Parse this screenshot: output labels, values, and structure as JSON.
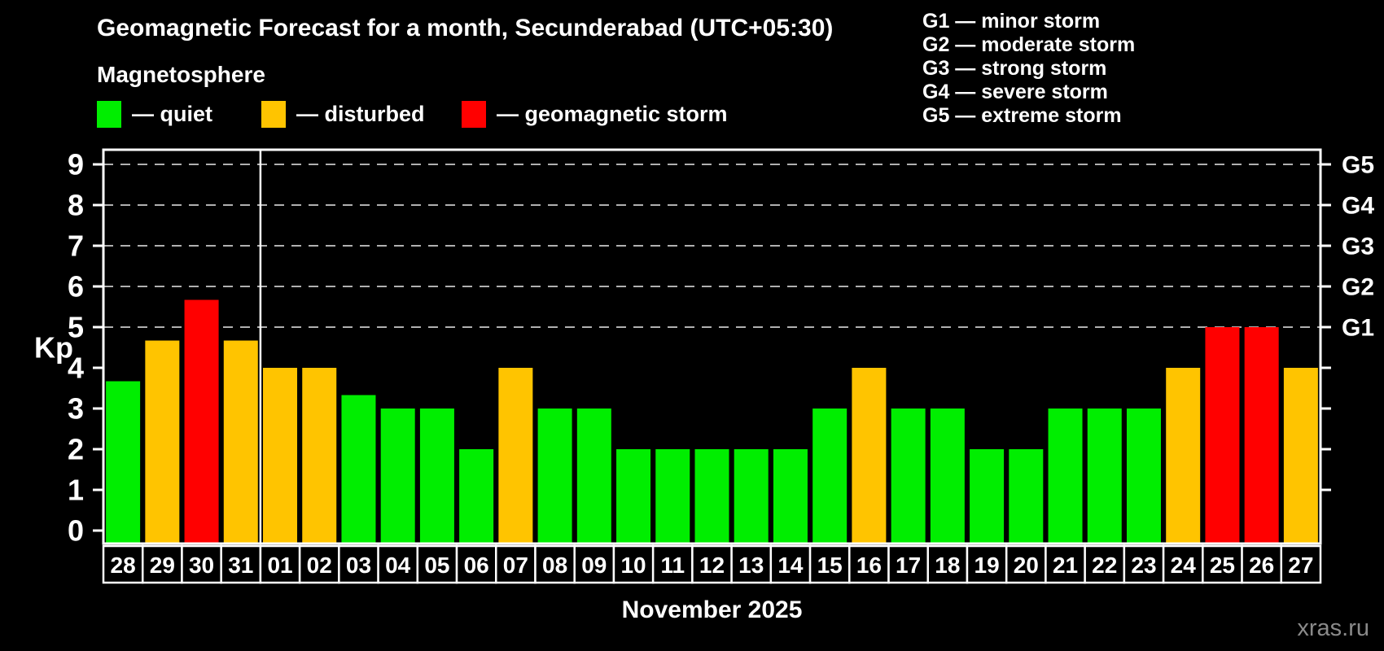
{
  "header": {
    "title": "Geomagnetic Forecast for a month, Secunderabad (UTC+05:30)",
    "subtitle": "Magnetosphere"
  },
  "legend": {
    "items": [
      {
        "label": "— quiet",
        "status": "quiet",
        "color": "#00ee00"
      },
      {
        "label": "— disturbed",
        "status": "disturbed",
        "color": "#ffc400"
      },
      {
        "label": "— geomagnetic storm",
        "status": "storm",
        "color": "#ff0000"
      }
    ]
  },
  "storm_scale": {
    "items": [
      {
        "label": "G1 — minor storm"
      },
      {
        "label": "G2 — moderate storm"
      },
      {
        "label": "G3 — strong storm"
      },
      {
        "label": "G4 — severe storm"
      },
      {
        "label": "G5 — extreme storm"
      }
    ]
  },
  "chart_data": {
    "type": "bar",
    "title": "Geomagnetic Forecast for a month, Secunderabad (UTC+05:30)",
    "ylabel": "Kp",
    "xlabel": "November 2025",
    "categories": [
      "28",
      "29",
      "30",
      "31",
      "01",
      "02",
      "03",
      "04",
      "05",
      "06",
      "07",
      "08",
      "09",
      "10",
      "11",
      "12",
      "13",
      "14",
      "15",
      "16",
      "17",
      "18",
      "19",
      "20",
      "21",
      "22",
      "23",
      "24",
      "25",
      "26",
      "27"
    ],
    "values": [
      3.67,
      4.67,
      5.67,
      4.67,
      4,
      4,
      3.33,
      3,
      3,
      2,
      4,
      3,
      3,
      2,
      2,
      2,
      2,
      2,
      3,
      4,
      3,
      3,
      2,
      2,
      3,
      3,
      3,
      4,
      5,
      5,
      4
    ],
    "statuses": [
      "quiet",
      "disturbed",
      "storm",
      "disturbed",
      "disturbed",
      "disturbed",
      "quiet",
      "quiet",
      "quiet",
      "quiet",
      "disturbed",
      "quiet",
      "quiet",
      "quiet",
      "quiet",
      "quiet",
      "quiet",
      "quiet",
      "quiet",
      "disturbed",
      "quiet",
      "quiet",
      "quiet",
      "quiet",
      "quiet",
      "quiet",
      "quiet",
      "disturbed",
      "storm",
      "storm",
      "disturbed"
    ],
    "status_colors": {
      "quiet": "#00ee00",
      "disturbed": "#ffc400",
      "storm": "#ff0000"
    },
    "ylim": [
      0,
      9
    ],
    "yticks": [
      0,
      1,
      2,
      3,
      4,
      5,
      6,
      7,
      8,
      9
    ],
    "grid_levels": [
      5,
      6,
      7,
      8,
      9
    ],
    "right_axis_labels": [
      {
        "label": "G1",
        "kp": 5
      },
      {
        "label": "G2",
        "kp": 6
      },
      {
        "label": "G3",
        "kp": 7
      },
      {
        "label": "G4",
        "kp": 8
      },
      {
        "label": "G5",
        "kp": 9
      }
    ],
    "month_separator_after_index": 4,
    "grid_style": "dashed",
    "grid_color": "#b0b0b0",
    "axis_color": "#ffffff",
    "legend_position": "top-left"
  },
  "footer": {
    "month_label": "November 2025",
    "watermark": "xras.ru"
  }
}
